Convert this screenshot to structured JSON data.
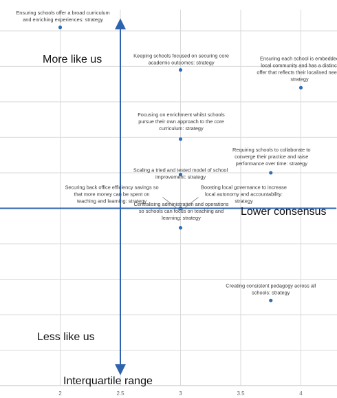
{
  "chart_data": {
    "type": "scatter",
    "xlim": [
      1.5,
      4.3
    ],
    "ylim": [
      0,
      10.6
    ],
    "grid": true,
    "x_ticks": [
      "2",
      "2.5",
      "3",
      "3.5",
      "4"
    ],
    "point_color": "#2f6fb4",
    "axis_color": "#2e63ad",
    "quadrant_labels": {
      "top": "More like us",
      "right": "Lower consensus",
      "bottom_left": "Less like us",
      "bottom": "Interquartile range"
    },
    "points": [
      {
        "x": 2.0,
        "y": 10.1,
        "label": [
          "Ensuring schools offer a broad curriculum",
          "and enriching experiences: strategy"
        ]
      },
      {
        "x": 3.0,
        "y": 8.9,
        "label": [
          "Keeping schools focused on securing core",
          "academic outcomes: strategy"
        ]
      },
      {
        "x": 4.0,
        "y": 8.4,
        "label": [
          "Ensuring each school is embedded",
          "local community and has a distinct",
          "offer that reflects their localised needs",
          "strategy"
        ]
      },
      {
        "x": 3.0,
        "y": 6.95,
        "label": [
          "Focusing on enrichment whilst schools",
          "pursue their own approach to the core",
          "curriculum: strategy"
        ]
      },
      {
        "x": 3.75,
        "y": 6.0,
        "label": [
          "Requiring schools to collaborate to",
          "converge their practice and raise",
          "performance over time: strategy"
        ]
      },
      {
        "x": 3.0,
        "y": 5.95,
        "label": [
          "Scaling a tried and tested model of school",
          "improvement: strategy"
        ]
      },
      {
        "x": 3.0,
        "y": 5.0,
        "label": [
          "Securing back office efficiency savings so",
          "that more money can be spent on",
          "teaching and learning: strategy"
        ]
      },
      {
        "x": 3.0,
        "y": 5.0,
        "label": [
          "Boosting local governance to increase",
          "local autonomy and accountability:",
          "strategy"
        ]
      },
      {
        "x": 3.0,
        "y": 4.45,
        "label": [
          "Centralising administration and operations",
          "so schools can focus on teaching and",
          "learning: strategy"
        ]
      },
      {
        "x": 3.75,
        "y": 2.4,
        "label": [
          "Creating consistent pedagogy across all",
          "schools: strategy"
        ]
      }
    ]
  }
}
